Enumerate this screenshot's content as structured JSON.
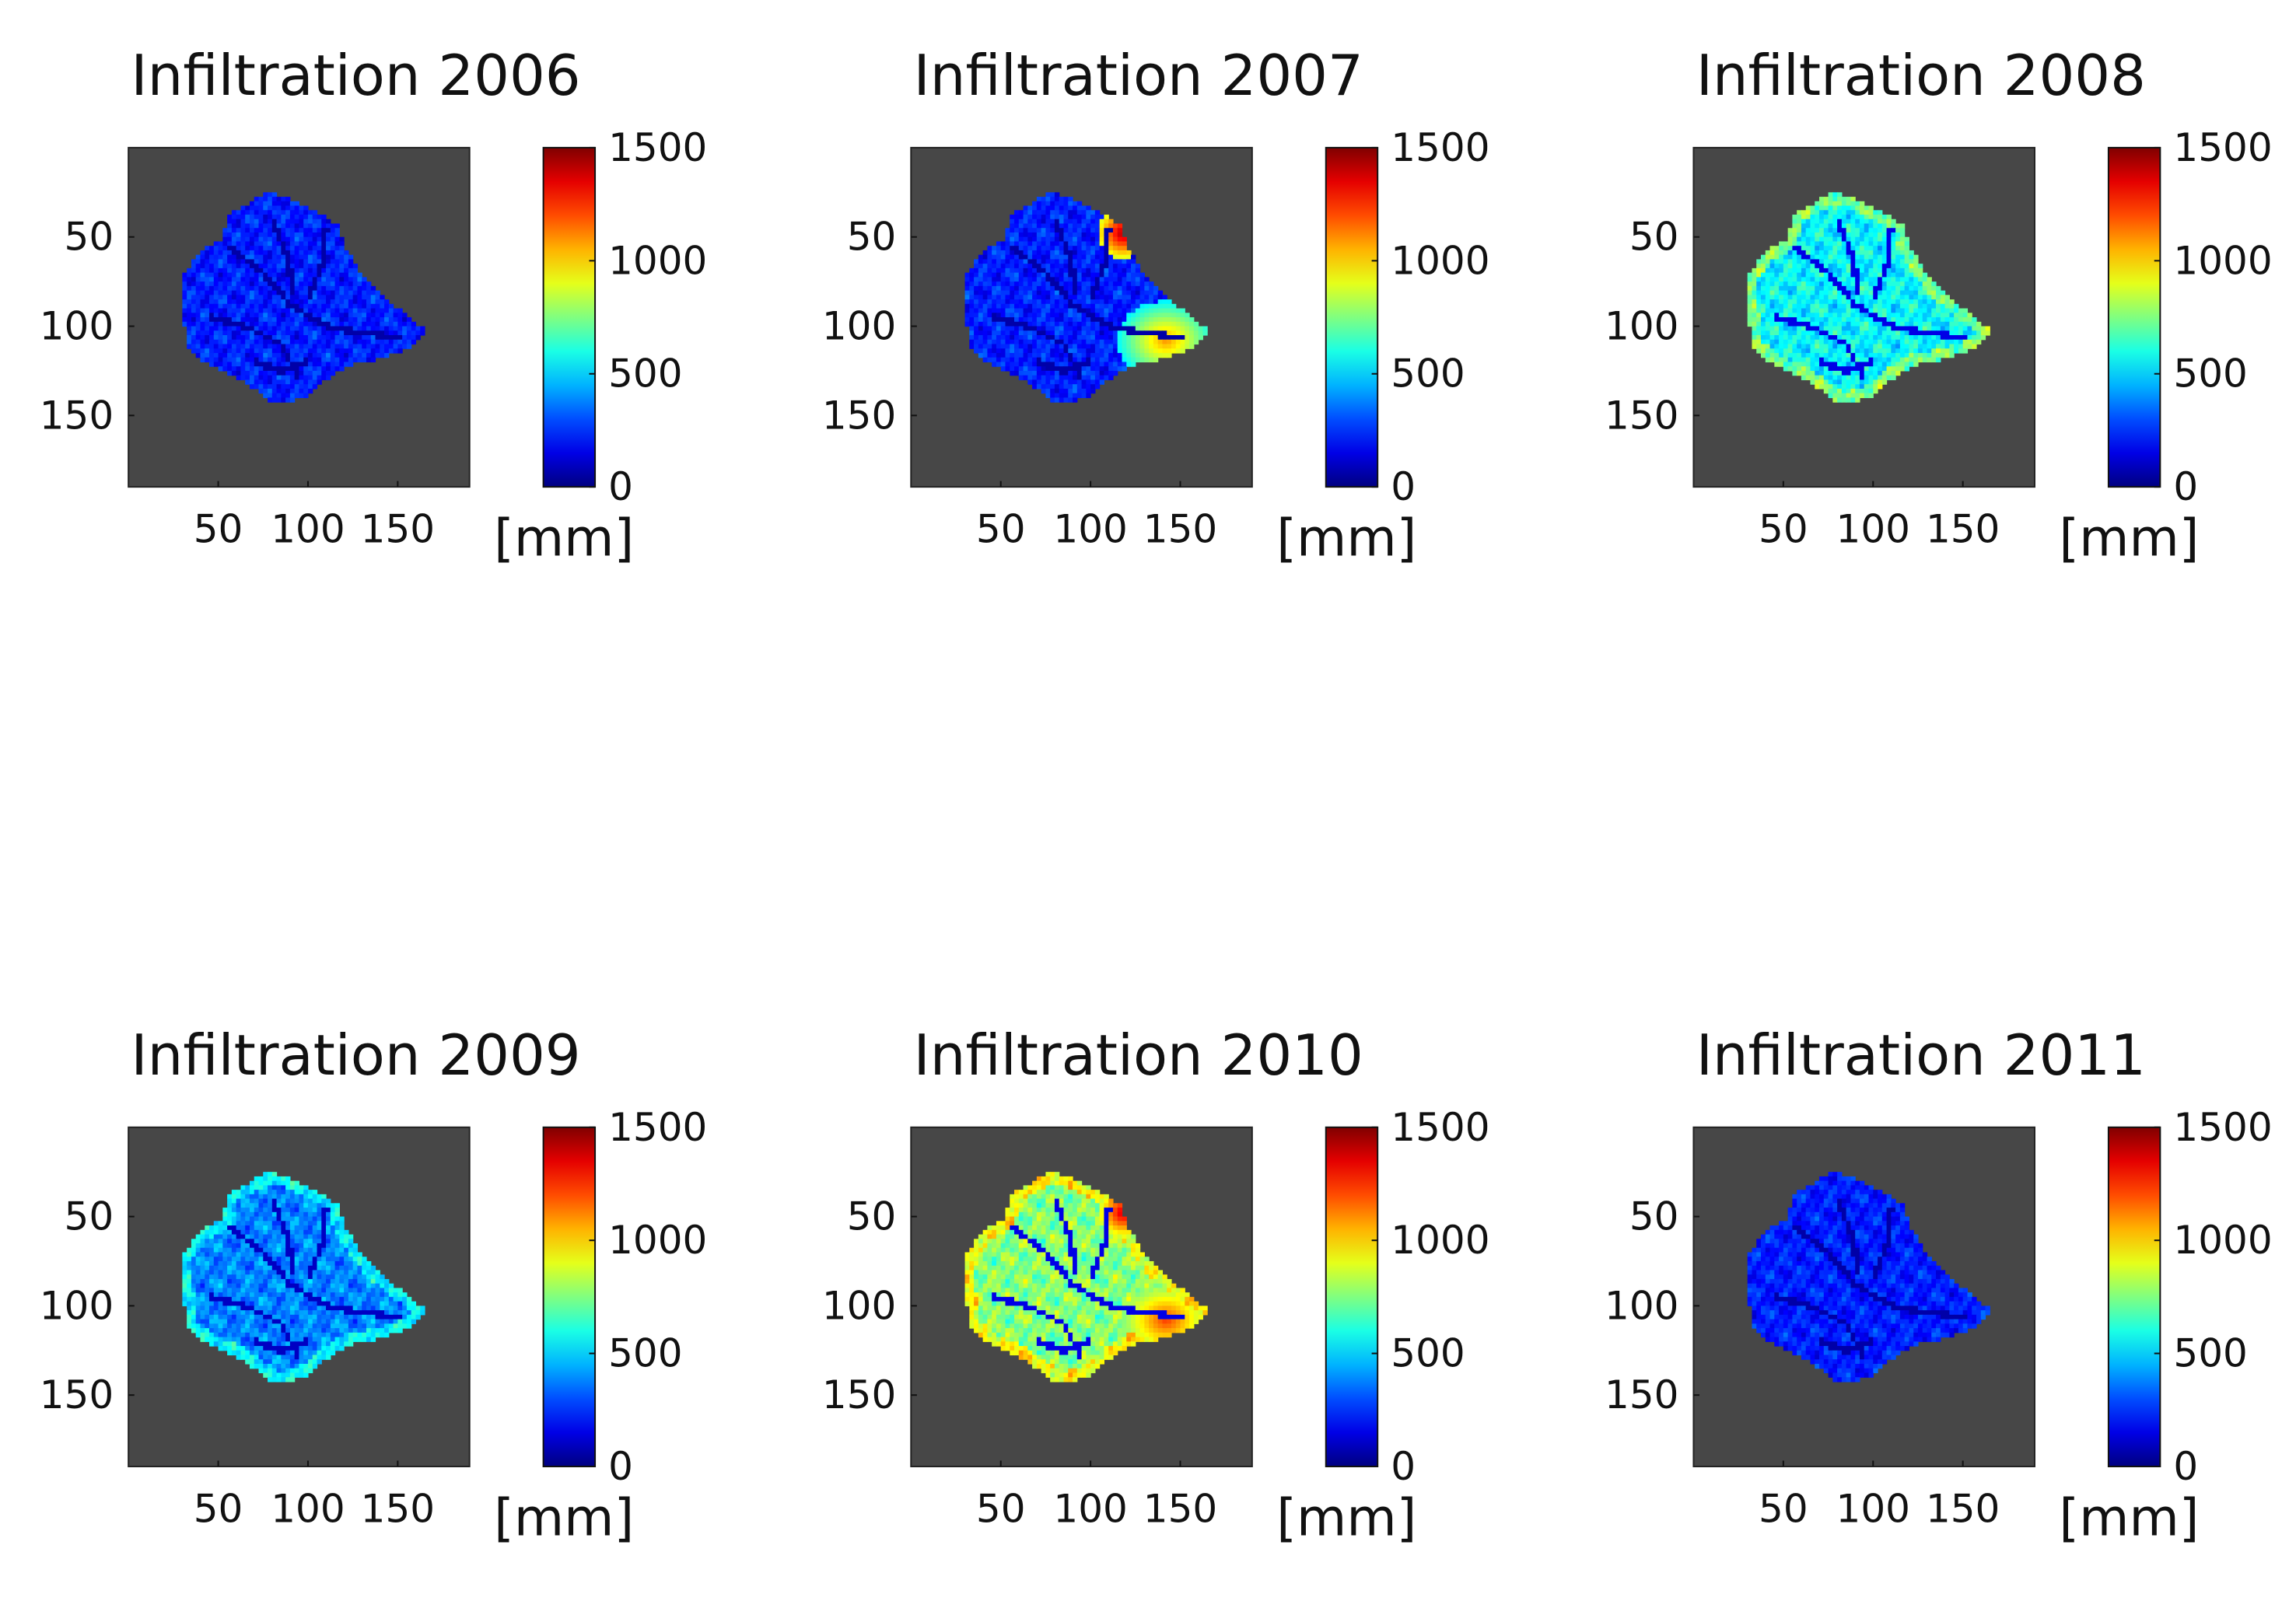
{
  "chart_data": {
    "type": "heatmap",
    "colormap": "jet",
    "background_color": "#474747",
    "panels": [
      {
        "title": "Infiltration 2006",
        "mean_mm": 230,
        "spread_mm": 150,
        "hot_east_mm": 0,
        "hot_ne_mm": 0,
        "streams_mm": 60
      },
      {
        "title": "Infiltration 2007",
        "mean_mm": 230,
        "spread_mm": 150,
        "hot_east_mm": 1100,
        "hot_ne_mm": 1450,
        "streams_mm": 60
      },
      {
        "title": "Infiltration 2008",
        "mean_mm": 560,
        "spread_mm": 190,
        "hot_east_mm": 0,
        "hot_ne_mm": 0,
        "streams_mm": 150
      },
      {
        "title": "Infiltration 2009",
        "mean_mm": 380,
        "spread_mm": 170,
        "hot_east_mm": 0,
        "hot_ne_mm": 0,
        "streams_mm": 100
      },
      {
        "title": "Infiltration 2010",
        "mean_mm": 760,
        "spread_mm": 200,
        "hot_east_mm": 1230,
        "hot_ne_mm": 1400,
        "streams_mm": 150
      },
      {
        "title": "Infiltration 2011",
        "mean_mm": 230,
        "spread_mm": 140,
        "hot_east_mm": 0,
        "hot_ne_mm": 0,
        "streams_mm": 60
      }
    ],
    "x_axis": {
      "ticks": [
        "50",
        "100",
        "150"
      ],
      "tick_values": [
        50,
        100,
        150
      ],
      "range": [
        0,
        190
      ]
    },
    "y_axis": {
      "ticks": [
        "50",
        "100",
        "150"
      ],
      "tick_values": [
        50,
        100,
        150
      ],
      "range": [
        0,
        190
      ]
    },
    "colorbar": {
      "min": 0,
      "max": 1500,
      "ticks": [
        "1500",
        "1000",
        "500",
        "0"
      ],
      "tick_values": [
        1500,
        1000,
        500,
        0
      ],
      "unit_label": "[mm]"
    },
    "region_outline": [
      [
        30,
        72
      ],
      [
        40,
        58
      ],
      [
        52,
        52
      ],
      [
        55,
        38
      ],
      [
        65,
        32
      ],
      [
        78,
        25
      ],
      [
        90,
        28
      ],
      [
        100,
        34
      ],
      [
        110,
        38
      ],
      [
        118,
        45
      ],
      [
        120,
        55
      ],
      [
        128,
        68
      ],
      [
        138,
        80
      ],
      [
        150,
        90
      ],
      [
        165,
        102
      ],
      [
        158,
        112
      ],
      [
        140,
        118
      ],
      [
        122,
        122
      ],
      [
        110,
        130
      ],
      [
        98,
        140
      ],
      [
        82,
        144
      ],
      [
        72,
        136
      ],
      [
        60,
        128
      ],
      [
        45,
        122
      ],
      [
        33,
        112
      ],
      [
        30,
        92
      ]
    ]
  }
}
